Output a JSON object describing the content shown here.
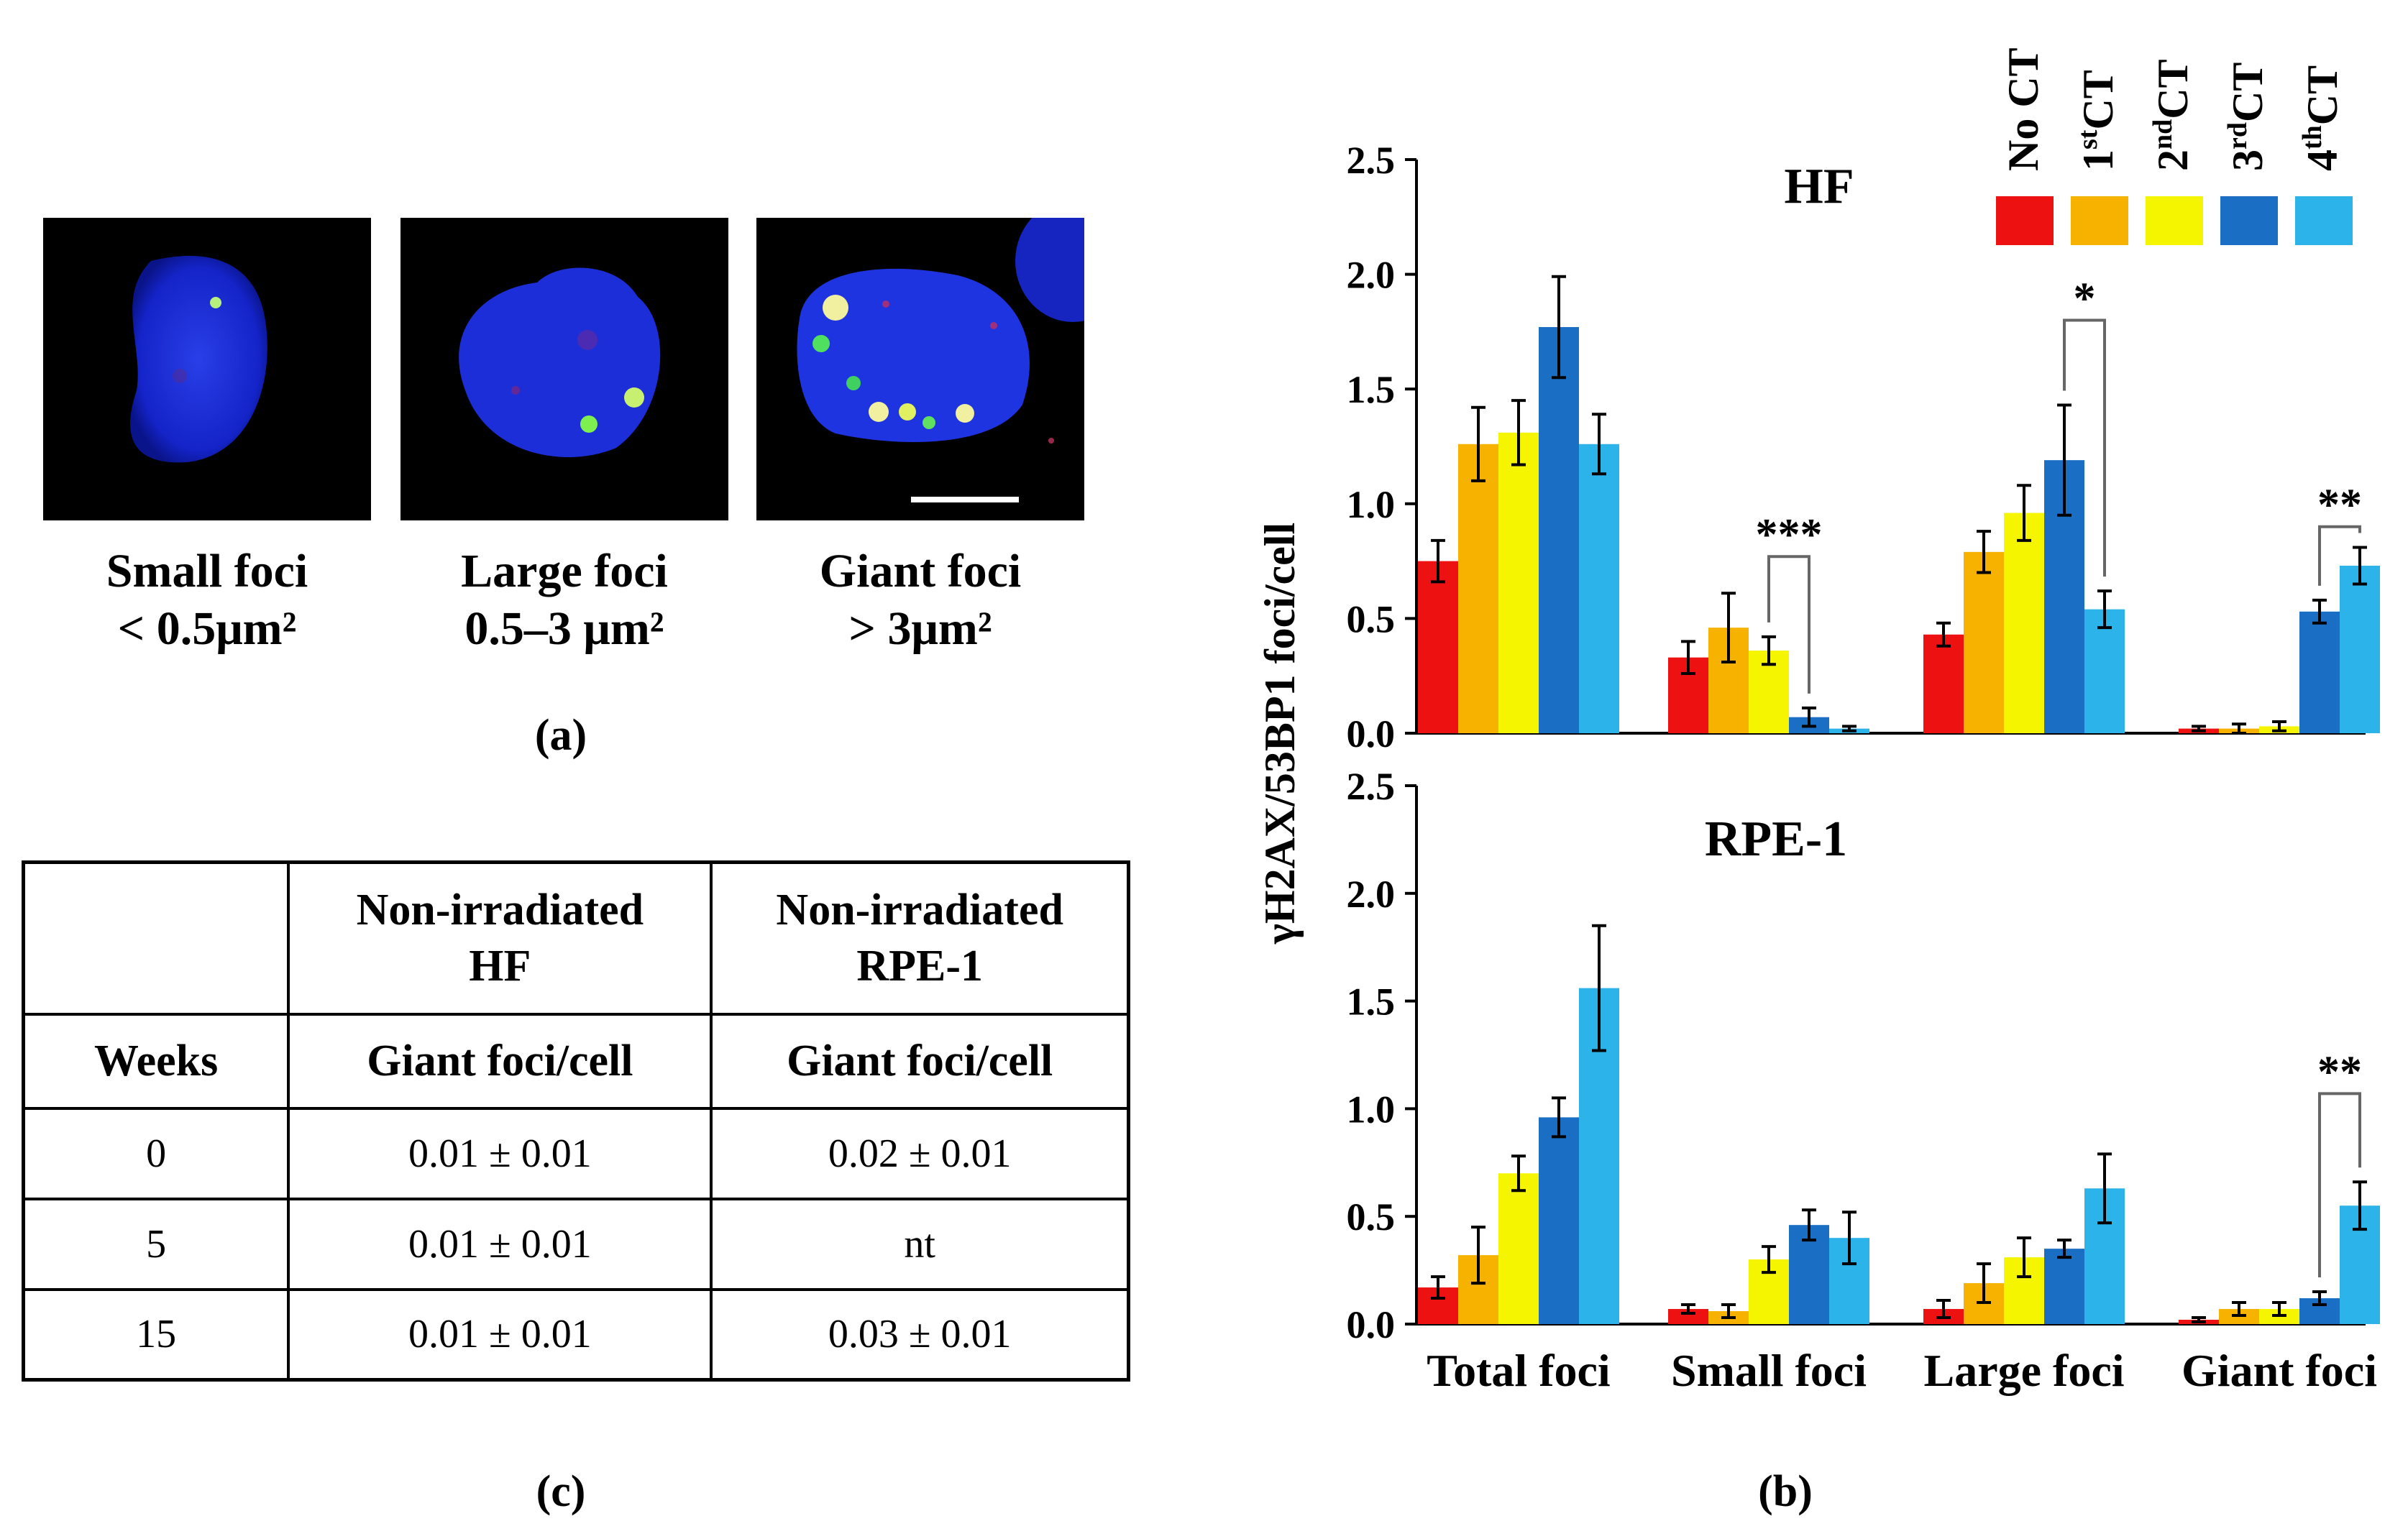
{
  "panel_a": {
    "label": "(a)",
    "images": [
      {
        "caption_line1": "Small foci",
        "caption_line2": "< 0.5μm²"
      },
      {
        "caption_line1": "Large foci",
        "caption_line2": "0.5–3 μm²"
      },
      {
        "caption_line1": "Giant foci",
        "caption_line2": "> 3μm²"
      }
    ]
  },
  "panel_c": {
    "label": "(c)",
    "header_col2": [
      "Non-irradiated",
      "HF"
    ],
    "header_col3": [
      "Non-irradiated",
      "RPE-1"
    ],
    "subheader": [
      "Weeks",
      "Giant foci/cell",
      "Giant foci/cell"
    ],
    "rows": [
      {
        "weeks": "0",
        "hf": "0.01 ± 0.01",
        "rpe": "0.02 ± 0.01"
      },
      {
        "weeks": "5",
        "hf": "0.01 ± 0.01",
        "rpe": "nt"
      },
      {
        "weeks": "15",
        "hf": "0.01 ± 0.01",
        "rpe": "0.03 ± 0.01"
      }
    ]
  },
  "panel_b": {
    "label": "(b)"
  },
  "colors": [
    "#ee1111",
    "#f7b200",
    "#f5f500",
    "#1a6fc4",
    "#2cb4ea"
  ],
  "chart_data": {
    "type": "bar",
    "ylabel": "γH2AX/53BP1 foci/cell",
    "categories": [
      "Total foci",
      "Small foci",
      "Large foci",
      "Giant foci"
    ],
    "legend": [
      {
        "base": "No CT",
        "sup": "",
        "tail": ""
      },
      {
        "base": "1",
        "sup": "st",
        "tail": "CT"
      },
      {
        "base": "2",
        "sup": "nd",
        "tail": "CT"
      },
      {
        "base": "3",
        "sup": "rd",
        "tail": "CT"
      },
      {
        "base": "4",
        "sup": "th",
        "tail": "CT"
      }
    ],
    "yticks": [
      "0.0",
      "0.5",
      "1.0",
      "1.5",
      "2.0",
      "2.5"
    ],
    "panels": [
      {
        "title": "HF",
        "ylim": [
          0,
          2.5
        ],
        "series": [
          {
            "name": "No CT",
            "values": [
              0.75,
              0.33,
              0.43,
              0.02
            ],
            "errors": [
              0.09,
              0.07,
              0.05,
              0.01
            ]
          },
          {
            "name": "1st CT",
            "values": [
              1.26,
              0.46,
              0.79,
              0.02
            ],
            "errors": [
              0.16,
              0.15,
              0.09,
              0.02
            ]
          },
          {
            "name": "2nd CT",
            "values": [
              1.31,
              0.36,
              0.96,
              0.03
            ],
            "errors": [
              0.14,
              0.06,
              0.12,
              0.02
            ]
          },
          {
            "name": "3rd CT",
            "values": [
              1.77,
              0.07,
              1.19,
              0.53
            ],
            "errors": [
              0.22,
              0.04,
              0.24,
              0.05
            ]
          },
          {
            "name": "4th CT",
            "values": [
              1.26,
              0.02,
              0.54,
              0.73
            ],
            "errors": [
              0.13,
              0.01,
              0.08,
              0.08
            ]
          }
        ],
        "significance": [
          {
            "category": "Small foci",
            "from": "2nd CT",
            "to": "3rd CT",
            "label": "***",
            "level": 0.77
          },
          {
            "category": "Large foci",
            "from": "3rd CT",
            "to": "4th CT",
            "label": "*",
            "level": 1.8
          },
          {
            "category": "Giant foci",
            "from": "3rd CT",
            "to": "4th CT",
            "label": "**",
            "level": 0.9
          }
        ]
      },
      {
        "title": "RPE-1",
        "ylim": [
          0,
          2.5
        ],
        "series": [
          {
            "name": "No CT",
            "values": [
              0.17,
              0.07,
              0.07,
              0.02
            ],
            "errors": [
              0.05,
              0.02,
              0.04,
              0.01
            ]
          },
          {
            "name": "1st CT",
            "values": [
              0.32,
              0.06,
              0.19,
              0.07
            ],
            "errors": [
              0.13,
              0.03,
              0.09,
              0.03
            ]
          },
          {
            "name": "2nd CT",
            "values": [
              0.7,
              0.3,
              0.31,
              0.07
            ],
            "errors": [
              0.08,
              0.06,
              0.09,
              0.03
            ]
          },
          {
            "name": "3rd CT",
            "values": [
              0.96,
              0.46,
              0.35,
              0.12
            ],
            "errors": [
              0.09,
              0.07,
              0.04,
              0.03
            ]
          },
          {
            "name": "4th CT",
            "values": [
              1.56,
              0.4,
              0.63,
              0.55
            ],
            "errors": [
              0.29,
              0.12,
              0.16,
              0.11
            ]
          }
        ],
        "significance": [
          {
            "category": "Giant foci",
            "from": "3rd CT",
            "to": "4th CT",
            "label": "**",
            "level": 1.07
          }
        ]
      }
    ]
  }
}
